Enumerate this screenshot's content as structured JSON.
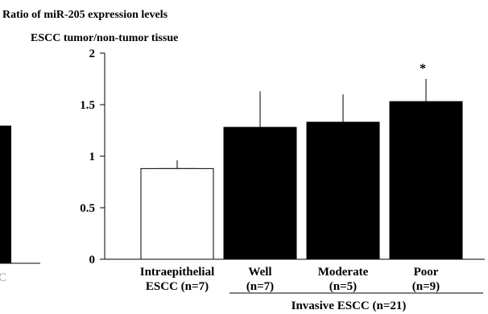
{
  "chart_data": {
    "type": "bar",
    "title_line1": "Ratio of  miR-205 expression levels",
    "title_line2": "ESCC tumor/non-tumor tissue",
    "ylim": [
      0,
      2
    ],
    "yticks": [
      "0",
      "0.5",
      "1",
      "1.5",
      "2"
    ],
    "categories": [
      {
        "line1": "Intraepithelial",
        "line2": "ESCC (n=7)"
      },
      {
        "line1": "Well",
        "line2": "(n=7)"
      },
      {
        "line1": "Moderate",
        "line2": "(n=5)"
      },
      {
        "line1": "Poor",
        "line2": "(n=9)"
      }
    ],
    "values": [
      0.88,
      1.28,
      1.33,
      1.53
    ],
    "error_upper": [
      0.96,
      1.63,
      1.6,
      1.75
    ],
    "fills": [
      "#ffffff",
      "#000000",
      "#000000",
      "#000000"
    ],
    "significance": [
      "",
      "",
      "",
      "*"
    ],
    "group_label": "Invasive ESCC (n=21)",
    "left_panel_fragment": "C"
  }
}
